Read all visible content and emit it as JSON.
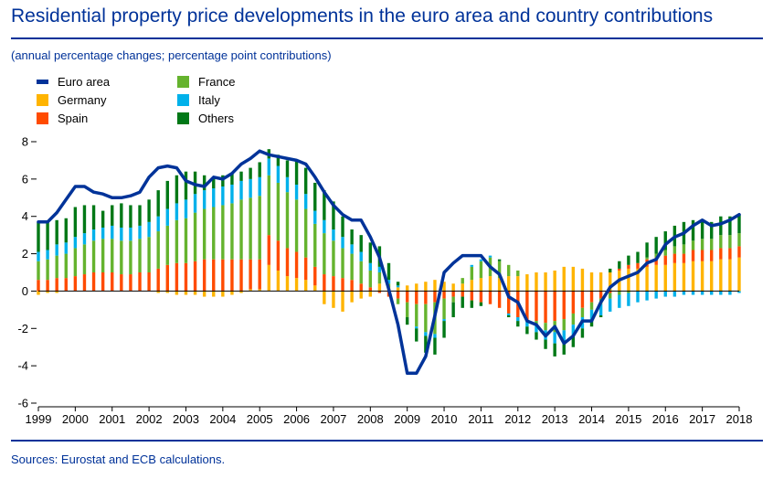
{
  "header": {
    "title": "Residential property price developments in the euro area and country contributions",
    "subtitle": "(annual percentage changes; percentage point contributions)"
  },
  "footer": {
    "source": "Sources: Eurostat and ECB calculations."
  },
  "legend": [
    {
      "label": "Euro area",
      "kind": "line",
      "color": "#003399"
    },
    {
      "label": "France",
      "kind": "box",
      "color": "#65b32e"
    },
    {
      "label": "Germany",
      "kind": "box",
      "color": "#ffb400"
    },
    {
      "label": "Italy",
      "kind": "box",
      "color": "#00b1ea"
    },
    {
      "label": "Spain",
      "kind": "box",
      "color": "#ff4b00"
    },
    {
      "label": "Others",
      "kind": "box",
      "color": "#007816"
    }
  ],
  "chart_data": {
    "type": "bar",
    "stacked": true,
    "frequency": "quarterly",
    "title": "Residential property price developments in the euro area and country contributions",
    "subtitle": "(annual percentage changes; percentage point contributions)",
    "x_ticks": [
      "1999",
      "2000",
      "2001",
      "2002",
      "2003",
      "2004",
      "2005",
      "2006",
      "2007",
      "2008",
      "2009",
      "2010",
      "2011",
      "2012",
      "2013",
      "2014",
      "2015",
      "2016",
      "2017",
      "2018"
    ],
    "ylim": [
      -6,
      8
    ],
    "y_ticks": [
      -6,
      -4,
      -2,
      0,
      2,
      4,
      6,
      8
    ],
    "grid": false,
    "legend_position": "top-left",
    "categories": [
      "1999Q1",
      "1999Q2",
      "1999Q3",
      "1999Q4",
      "2000Q1",
      "2000Q2",
      "2000Q3",
      "2000Q4",
      "2001Q1",
      "2001Q2",
      "2001Q3",
      "2001Q4",
      "2002Q1",
      "2002Q2",
      "2002Q3",
      "2002Q4",
      "2003Q1",
      "2003Q2",
      "2003Q3",
      "2003Q4",
      "2004Q1",
      "2004Q2",
      "2004Q3",
      "2004Q4",
      "2005Q1",
      "2005Q2",
      "2005Q3",
      "2005Q4",
      "2006Q1",
      "2006Q2",
      "2006Q3",
      "2006Q4",
      "2007Q1",
      "2007Q2",
      "2007Q3",
      "2007Q4",
      "2008Q1",
      "2008Q2",
      "2008Q3",
      "2008Q4",
      "2009Q1",
      "2009Q2",
      "2009Q3",
      "2009Q4",
      "2010Q1",
      "2010Q2",
      "2010Q3",
      "2010Q4",
      "2011Q1",
      "2011Q2",
      "2011Q3",
      "2011Q4",
      "2012Q1",
      "2012Q2",
      "2012Q3",
      "2012Q4",
      "2013Q1",
      "2013Q2",
      "2013Q3",
      "2013Q4",
      "2014Q1",
      "2014Q2",
      "2014Q3",
      "2014Q4",
      "2015Q1",
      "2015Q2",
      "2015Q3",
      "2015Q4",
      "2016Q1",
      "2016Q2",
      "2016Q3",
      "2016Q4",
      "2017Q1",
      "2017Q2",
      "2017Q3",
      "2017Q4",
      "2018Q1"
    ],
    "series": [
      {
        "name": "Germany",
        "kind": "bar",
        "color": "#ffb400",
        "values": [
          -0.2,
          -0.1,
          -0.1,
          0,
          0,
          0,
          0,
          0,
          0,
          0,
          0,
          0,
          0,
          -0.1,
          -0.1,
          -0.2,
          -0.2,
          -0.2,
          -0.3,
          -0.3,
          -0.3,
          -0.2,
          -0.1,
          0.1,
          0.1,
          1.4,
          1.1,
          0.8,
          0.7,
          0.6,
          0.3,
          -0.7,
          -0.9,
          -1.1,
          -0.6,
          -0.4,
          -0.3,
          0.4,
          0.2,
          0.2,
          0.3,
          0.4,
          0.5,
          0.6,
          0.5,
          0.4,
          0.4,
          0.6,
          0.7,
          0.8,
          0.7,
          0.8,
          0.8,
          0.9,
          1.0,
          1.0,
          1.1,
          1.3,
          1.3,
          1.2,
          1.0,
          1.0,
          1.0,
          1.1,
          1.2,
          1.2,
          1.3,
          1.4,
          1.4,
          1.5,
          1.5,
          1.6,
          1.6,
          1.6,
          1.7,
          1.7,
          1.8
        ]
      },
      {
        "name": "Spain",
        "kind": "bar",
        "color": "#ff4b00",
        "values": [
          0.6,
          0.6,
          0.7,
          0.7,
          0.8,
          0.9,
          1.0,
          1.0,
          1.0,
          0.9,
          0.9,
          1.0,
          1.0,
          1.2,
          1.4,
          1.5,
          1.5,
          1.6,
          1.7,
          1.7,
          1.7,
          1.7,
          1.7,
          1.6,
          1.6,
          1.6,
          1.6,
          1.5,
          1.4,
          1.2,
          1.0,
          0.9,
          0.8,
          0.7,
          0.6,
          0.4,
          0.2,
          -0.1,
          -0.3,
          -0.4,
          -0.6,
          -0.7,
          -0.7,
          -0.6,
          -0.4,
          -0.3,
          -0.3,
          -0.5,
          -0.6,
          -0.7,
          -0.9,
          -1.2,
          -1.4,
          -1.6,
          -1.6,
          -1.7,
          -1.6,
          -1.5,
          -1.2,
          -0.9,
          -0.6,
          -0.4,
          -0.1,
          0.1,
          0.2,
          0.3,
          0.4,
          0.4,
          0.5,
          0.5,
          0.5,
          0.6,
          0.6,
          0.6,
          0.6,
          0.6,
          0.6
        ]
      },
      {
        "name": "France",
        "kind": "bar",
        "color": "#65b32e",
        "values": [
          1.0,
          1.1,
          1.2,
          1.3,
          1.5,
          1.6,
          1.7,
          1.8,
          1.8,
          1.8,
          1.8,
          1.8,
          1.9,
          2.0,
          2.1,
          2.3,
          2.4,
          2.6,
          2.7,
          2.8,
          2.9,
          3.0,
          3.2,
          3.3,
          3.4,
          3.2,
          3.1,
          3.0,
          2.8,
          2.6,
          2.3,
          2.2,
          1.9,
          1.6,
          1.4,
          1.2,
          0.9,
          0.6,
          0.2,
          -0.3,
          -0.8,
          -1.2,
          -1.5,
          -1.7,
          -1.1,
          -0.3,
          0.3,
          0.7,
          0.9,
          1.0,
          0.9,
          0.6,
          0.3,
          0,
          -0.2,
          -0.4,
          -0.6,
          -0.6,
          -0.6,
          -0.5,
          -0.4,
          -0.3,
          -0.3,
          -0.2,
          -0.1,
          0,
          0.1,
          0.2,
          0.3,
          0.4,
          0.5,
          0.5,
          0.6,
          0.6,
          0.7,
          0.7,
          0.7
        ]
      },
      {
        "name": "Italy",
        "kind": "bar",
        "color": "#00b1ea",
        "values": [
          0.5,
          0.5,
          0.6,
          0.6,
          0.6,
          0.6,
          0.6,
          0.6,
          0.7,
          0.7,
          0.7,
          0.7,
          0.8,
          0.8,
          0.9,
          0.9,
          1.0,
          1.0,
          1.0,
          1.0,
          1.0,
          1.0,
          1.0,
          1.0,
          1.0,
          0.9,
          0.9,
          0.8,
          0.8,
          0.8,
          0.7,
          0.7,
          0.6,
          0.6,
          0.5,
          0.5,
          0.4,
          0.3,
          0.2,
          0.1,
          0,
          -0.1,
          -0.2,
          -0.2,
          -0.1,
          0,
          0,
          0.1,
          0.1,
          0.1,
          0,
          -0.1,
          -0.2,
          -0.3,
          -0.4,
          -0.5,
          -0.6,
          -0.6,
          -0.6,
          -0.6,
          -0.6,
          -0.6,
          -0.7,
          -0.7,
          -0.7,
          -0.6,
          -0.5,
          -0.4,
          -0.3,
          -0.3,
          -0.2,
          -0.2,
          -0.2,
          -0.2,
          -0.2,
          -0.2,
          -0.1
        ]
      },
      {
        "name": "Others",
        "kind": "bar",
        "color": "#007816",
        "values": [
          1.6,
          1.5,
          1.3,
          1.3,
          1.6,
          1.5,
          1.3,
          0.9,
          1.1,
          1.3,
          1.2,
          1.1,
          1.2,
          1.4,
          1.5,
          1.5,
          1.5,
          1.2,
          0.8,
          0.6,
          0.6,
          0.6,
          0.5,
          0.6,
          0.8,
          0.5,
          0.6,
          0.9,
          1.3,
          1.4,
          1.5,
          1.6,
          1.5,
          1.1,
          0.8,
          0.9,
          1.1,
          1.1,
          0.9,
          0.2,
          -0.4,
          -0.7,
          -0.9,
          -0.9,
          -0.9,
          -0.8,
          -0.6,
          -0.4,
          -0.2,
          0,
          0.1,
          -0.1,
          -0.3,
          -0.4,
          -0.4,
          -0.5,
          -0.7,
          -0.7,
          -0.6,
          -0.5,
          -0.3,
          -0.1,
          0.2,
          0.4,
          0.5,
          0.6,
          0.8,
          0.9,
          1.0,
          1.1,
          1.2,
          1.1,
          0.9,
          0.9,
          1.0,
          1.0,
          1.0
        ]
      },
      {
        "name": "Euro area",
        "kind": "line",
        "color": "#003399",
        "values": [
          3.7,
          3.7,
          4.2,
          4.9,
          5.6,
          5.6,
          5.3,
          5.2,
          5.0,
          5.0,
          5.1,
          5.3,
          6.1,
          6.6,
          6.7,
          6.6,
          5.9,
          5.7,
          5.6,
          6.1,
          6.0,
          6.3,
          6.8,
          7.1,
          7.5,
          7.3,
          7.2,
          7.1,
          7.0,
          6.8,
          6.1,
          5.3,
          4.6,
          4.1,
          3.8,
          3.8,
          2.9,
          1.8,
          0.1,
          -1.8,
          -4.4,
          -4.4,
          -3.5,
          -1.3,
          1.0,
          1.5,
          1.9,
          1.9,
          1.9,
          1.3,
          0.9,
          -0.3,
          -0.6,
          -1.6,
          -1.8,
          -2.4,
          -1.9,
          -2.8,
          -2.4,
          -1.6,
          -1.6,
          -0.6,
          0.2,
          0.6,
          0.8,
          1.0,
          1.5,
          1.7,
          2.5,
          2.9,
          3.1,
          3.5,
          3.8,
          3.5,
          3.6,
          3.8,
          4.1
        ]
      }
    ]
  }
}
